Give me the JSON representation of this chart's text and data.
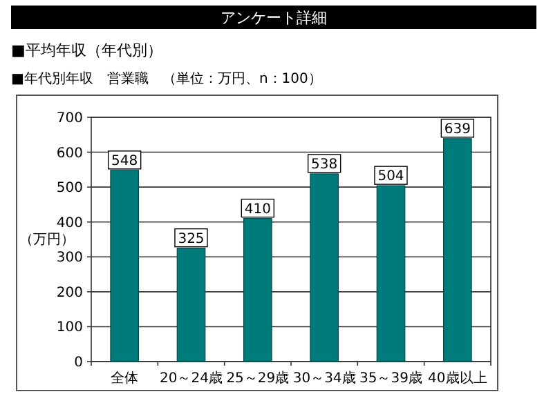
{
  "chart_data": {
    "type": "bar",
    "title": "アンケート詳細",
    "subtitle": "■平均年収（年代別）",
    "annotations": [
      "■年代別年収　営業職　（単位：万円、n：100）"
    ],
    "ylabel": "（万円）",
    "categories": [
      "全体",
      "20～24歳",
      "25～29歳",
      "30～34歳",
      "35～39歳",
      "40歳以上"
    ],
    "values": [
      548,
      325,
      410,
      538,
      504,
      639
    ],
    "color": "#007b7b",
    "ylim": [
      0,
      700
    ],
    "yticks": [
      0,
      100,
      200,
      300,
      400,
      500,
      600,
      700
    ],
    "grid": "y",
    "data_labels": true
  }
}
